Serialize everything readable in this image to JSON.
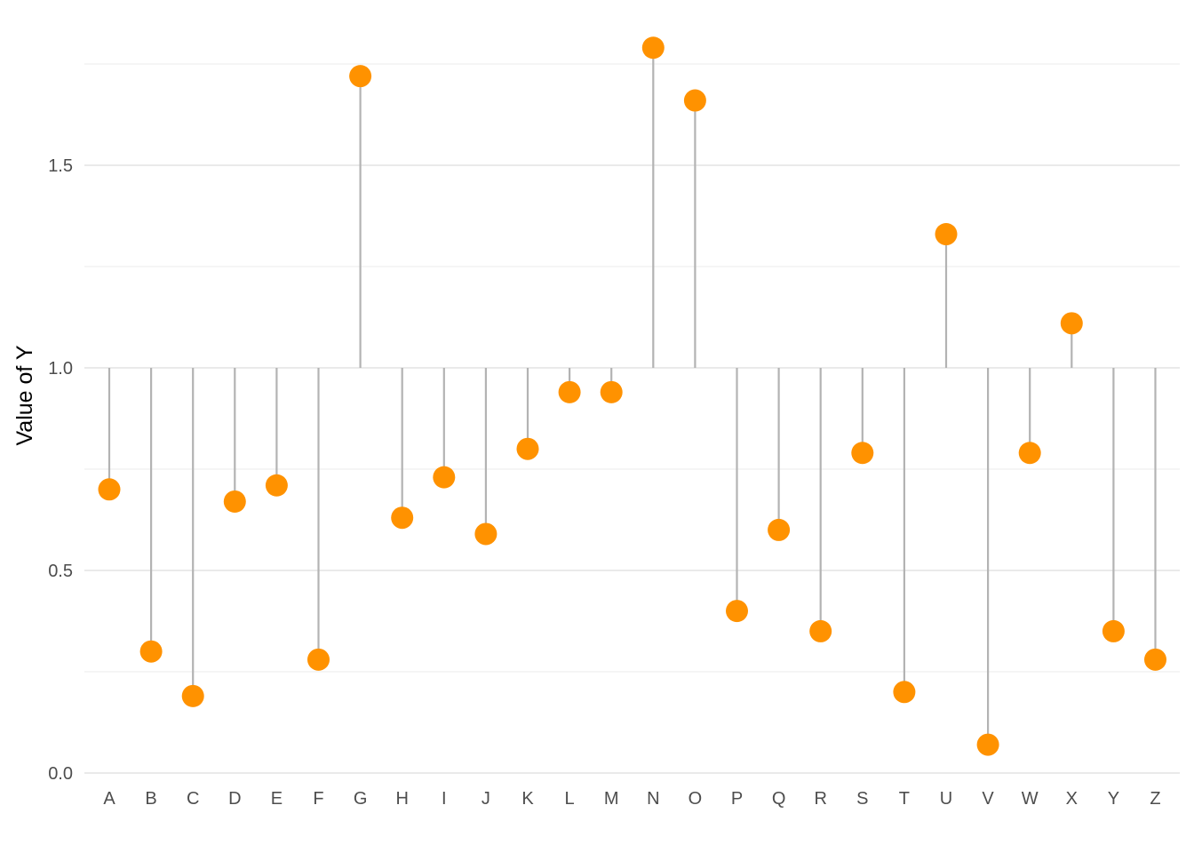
{
  "chart_data": {
    "type": "lollipop",
    "title": "",
    "xlabel": "",
    "ylabel": "Value of Y",
    "baseline": 1.0,
    "ylim": [
      0,
      1.75
    ],
    "y_ticks": [
      "0.0",
      "0.5",
      "1.0",
      "1.5"
    ],
    "y_tick_values": [
      0,
      0.5,
      1.0,
      1.5
    ],
    "y_minor_grid": [
      0.25,
      0.75,
      1.25,
      1.75
    ],
    "grid": true,
    "legend": "none",
    "categories": [
      "A",
      "B",
      "C",
      "D",
      "E",
      "F",
      "G",
      "H",
      "I",
      "J",
      "K",
      "L",
      "M",
      "N",
      "O",
      "P",
      "Q",
      "R",
      "S",
      "T",
      "U",
      "V",
      "W",
      "X",
      "Y",
      "Z"
    ],
    "values": [
      0.7,
      0.3,
      0.19,
      0.67,
      0.71,
      0.28,
      1.72,
      0.63,
      0.73,
      0.59,
      0.8,
      0.94,
      0.94,
      1.79,
      1.66,
      0.4,
      0.6,
      0.35,
      0.79,
      0.2,
      1.33,
      0.07,
      0.79,
      1.11,
      0.35,
      0.28
    ],
    "colors": {
      "point": "#FF9200",
      "stem": "#B3B3B3",
      "grid_major": "#DEDEDE",
      "grid_minor": "#EBEBEB"
    }
  }
}
